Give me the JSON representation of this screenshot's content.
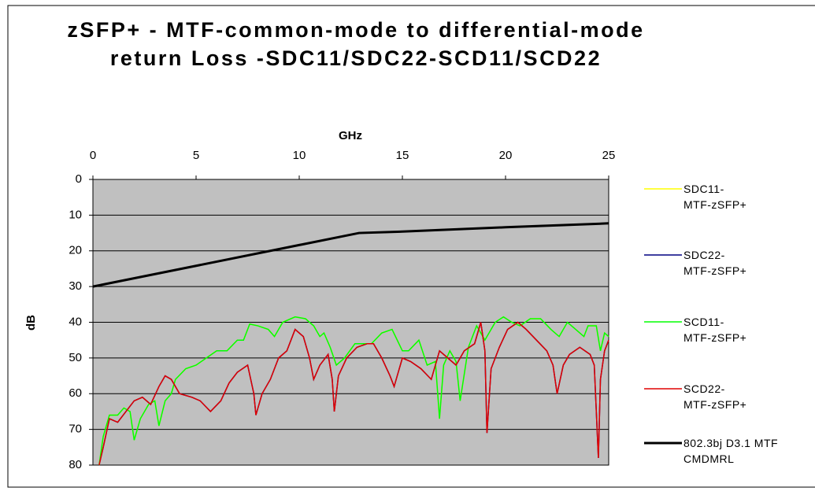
{
  "chart_data": {
    "type": "line",
    "title": "zSFP+ - MTF-common-mode to differential-mode return Loss -SDC11/SDC22-SCD11/SCD22",
    "x_label": "GHz",
    "y_label": "dB",
    "xlim": [
      0,
      25
    ],
    "xticks": [
      0,
      5,
      10,
      15,
      20,
      25
    ],
    "ylim": [
      0,
      80
    ],
    "yticks": [
      0,
      10,
      20,
      30,
      40,
      50,
      60,
      70,
      80
    ],
    "y_inverted": true,
    "grid": true,
    "legend": "right",
    "series": [
      {
        "name": "SDC11-MTF-zSFP+",
        "color": "#ffff00",
        "width": 1.5,
        "x": [
          0.3,
          0.5,
          0.8,
          1.2,
          1.5,
          1.8,
          2.0,
          2.3,
          2.7,
          3.0,
          3.2,
          3.5,
          3.8,
          4.0,
          4.5,
          5,
          5.5,
          6,
          6.5,
          7,
          7.3,
          7.6,
          8,
          8.5,
          8.8,
          9.2,
          9.8,
          10.3,
          10.7,
          11,
          11.2,
          11.5,
          11.8,
          12.2,
          12.7,
          13.2,
          13.5,
          14,
          14.5,
          15,
          15.3,
          15.8,
          16.2,
          16.6,
          16.8,
          17,
          17.3,
          17.6,
          17.8,
          18.2,
          18.6,
          19,
          19.5,
          19.9,
          20.3,
          20.7,
          21.2,
          21.7,
          22.2,
          22.6,
          23,
          23.4,
          23.8,
          24,
          24.4,
          24.6,
          24.8,
          25
        ],
        "values": [
          80,
          72,
          66,
          66,
          64,
          65,
          73,
          67,
          63,
          62,
          69,
          62,
          60,
          56,
          53,
          52,
          50,
          48,
          48,
          45,
          45,
          40.5,
          41,
          42,
          44,
          40,
          38.5,
          39,
          41,
          44,
          43,
          47,
          52,
          50,
          46,
          46,
          46,
          43,
          42,
          48,
          48,
          45,
          52,
          51,
          67,
          52,
          48,
          51,
          62,
          47,
          41,
          45,
          40,
          38.5,
          40,
          41,
          39,
          39,
          42,
          44,
          40,
          42,
          44,
          41,
          41,
          48,
          43,
          44
        ]
      },
      {
        "name": "SDC22-MTF-zSFP+",
        "color": "#000080",
        "width": 1.5,
        "x": [
          0.3,
          0.5,
          0.8,
          1.2,
          1.6,
          2.0,
          2.4,
          2.8,
          3.2,
          3.5,
          3.8,
          4.2,
          4.8,
          5.2,
          5.7,
          6.2,
          6.6,
          7,
          7.5,
          7.8,
          7.9,
          8.2,
          8.6,
          9.0,
          9.4,
          9.8,
          10.2,
          10.5,
          10.7,
          11,
          11.4,
          11.6,
          11.7,
          11.9,
          12.3,
          12.8,
          13.3,
          13.6,
          14,
          14.4,
          14.6,
          15,
          15.4,
          15.9,
          16.4,
          16.8,
          17.2,
          17.6,
          18.0,
          18.5,
          18.8,
          19.0,
          19.1,
          19.3,
          19.7,
          20.1,
          20.6,
          21,
          21.5,
          22,
          22.3,
          22.5,
          22.8,
          23.1,
          23.6,
          24.1,
          24.3,
          24.5,
          24.6,
          24.8,
          25
        ],
        "values": [
          80,
          75,
          67,
          68,
          65,
          62,
          61,
          63,
          58,
          55,
          56,
          60,
          61,
          62,
          65,
          62,
          57,
          54,
          52,
          60,
          66,
          60,
          56,
          50,
          48,
          42,
          44,
          50,
          56,
          52,
          49,
          56,
          65,
          55,
          50,
          47,
          46,
          46,
          50,
          55,
          58,
          50,
          51,
          53,
          56,
          48,
          50,
          52,
          48,
          46,
          40,
          48,
          71,
          53,
          47,
          42,
          40,
          42,
          45,
          48,
          52,
          60,
          52,
          49,
          47,
          49,
          52,
          78,
          56,
          48,
          45
        ]
      },
      {
        "name": "SCD11-MTF-zSFP+",
        "color": "#00ff00",
        "width": 1.5,
        "x": [
          0.3,
          0.5,
          0.8,
          1.2,
          1.5,
          1.8,
          2.0,
          2.3,
          2.7,
          3.0,
          3.2,
          3.5,
          3.8,
          4.0,
          4.5,
          5,
          5.5,
          6,
          6.5,
          7,
          7.3,
          7.6,
          8,
          8.5,
          8.8,
          9.2,
          9.8,
          10.3,
          10.7,
          11,
          11.2,
          11.5,
          11.8,
          12.2,
          12.7,
          13.2,
          13.5,
          14,
          14.5,
          15,
          15.3,
          15.8,
          16.2,
          16.6,
          16.8,
          17,
          17.3,
          17.6,
          17.8,
          18.2,
          18.6,
          19,
          19.5,
          19.9,
          20.3,
          20.7,
          21.2,
          21.7,
          22.2,
          22.6,
          23,
          23.4,
          23.8,
          24,
          24.4,
          24.6,
          24.8,
          25
        ],
        "values": [
          80,
          72,
          66,
          66,
          64,
          65,
          73,
          67,
          63,
          62,
          69,
          62,
          60,
          56,
          53,
          52,
          50,
          48,
          48,
          45,
          45,
          40.5,
          41,
          42,
          44,
          40,
          38.5,
          39,
          41,
          44,
          43,
          47,
          52,
          50,
          46,
          46,
          46,
          43,
          42,
          48,
          48,
          45,
          52,
          51,
          67,
          52,
          48,
          51,
          62,
          47,
          41,
          45,
          40,
          38.5,
          40,
          41,
          39,
          39,
          42,
          44,
          40,
          42,
          44,
          41,
          41,
          48,
          43,
          44
        ]
      },
      {
        "name": "SCD22-MTF-zSFP+",
        "color": "#e00000",
        "width": 1.5,
        "x": [
          0.3,
          0.5,
          0.8,
          1.2,
          1.6,
          2.0,
          2.4,
          2.8,
          3.2,
          3.5,
          3.8,
          4.2,
          4.8,
          5.2,
          5.7,
          6.2,
          6.6,
          7,
          7.5,
          7.8,
          7.9,
          8.2,
          8.6,
          9.0,
          9.4,
          9.8,
          10.2,
          10.5,
          10.7,
          11,
          11.4,
          11.6,
          11.7,
          11.9,
          12.3,
          12.8,
          13.3,
          13.6,
          14,
          14.4,
          14.6,
          15,
          15.4,
          15.9,
          16.4,
          16.8,
          17.2,
          17.6,
          18.0,
          18.5,
          18.8,
          19.0,
          19.1,
          19.3,
          19.7,
          20.1,
          20.6,
          21,
          21.5,
          22,
          22.3,
          22.5,
          22.8,
          23.1,
          23.6,
          24.1,
          24.3,
          24.5,
          24.6,
          24.8,
          25
        ],
        "values": [
          80,
          75,
          67,
          68,
          65,
          62,
          61,
          63,
          58,
          55,
          56,
          60,
          61,
          62,
          65,
          62,
          57,
          54,
          52,
          60,
          66,
          60,
          56,
          50,
          48,
          42,
          44,
          50,
          56,
          52,
          49,
          56,
          65,
          55,
          50,
          47,
          46,
          46,
          50,
          55,
          58,
          50,
          51,
          53,
          56,
          48,
          50,
          52,
          48,
          46,
          40,
          48,
          71,
          53,
          47,
          42,
          40,
          42,
          45,
          48,
          52,
          60,
          52,
          49,
          47,
          49,
          52,
          78,
          56,
          48,
          45
        ]
      },
      {
        "name": "802.3bj D3.1 MTF CMDMRL",
        "color": "#000000",
        "width": 3,
        "x": [
          0,
          12.9,
          15,
          20,
          25
        ],
        "values": [
          30,
          15,
          14.6,
          13.4,
          12.3
        ]
      }
    ]
  }
}
